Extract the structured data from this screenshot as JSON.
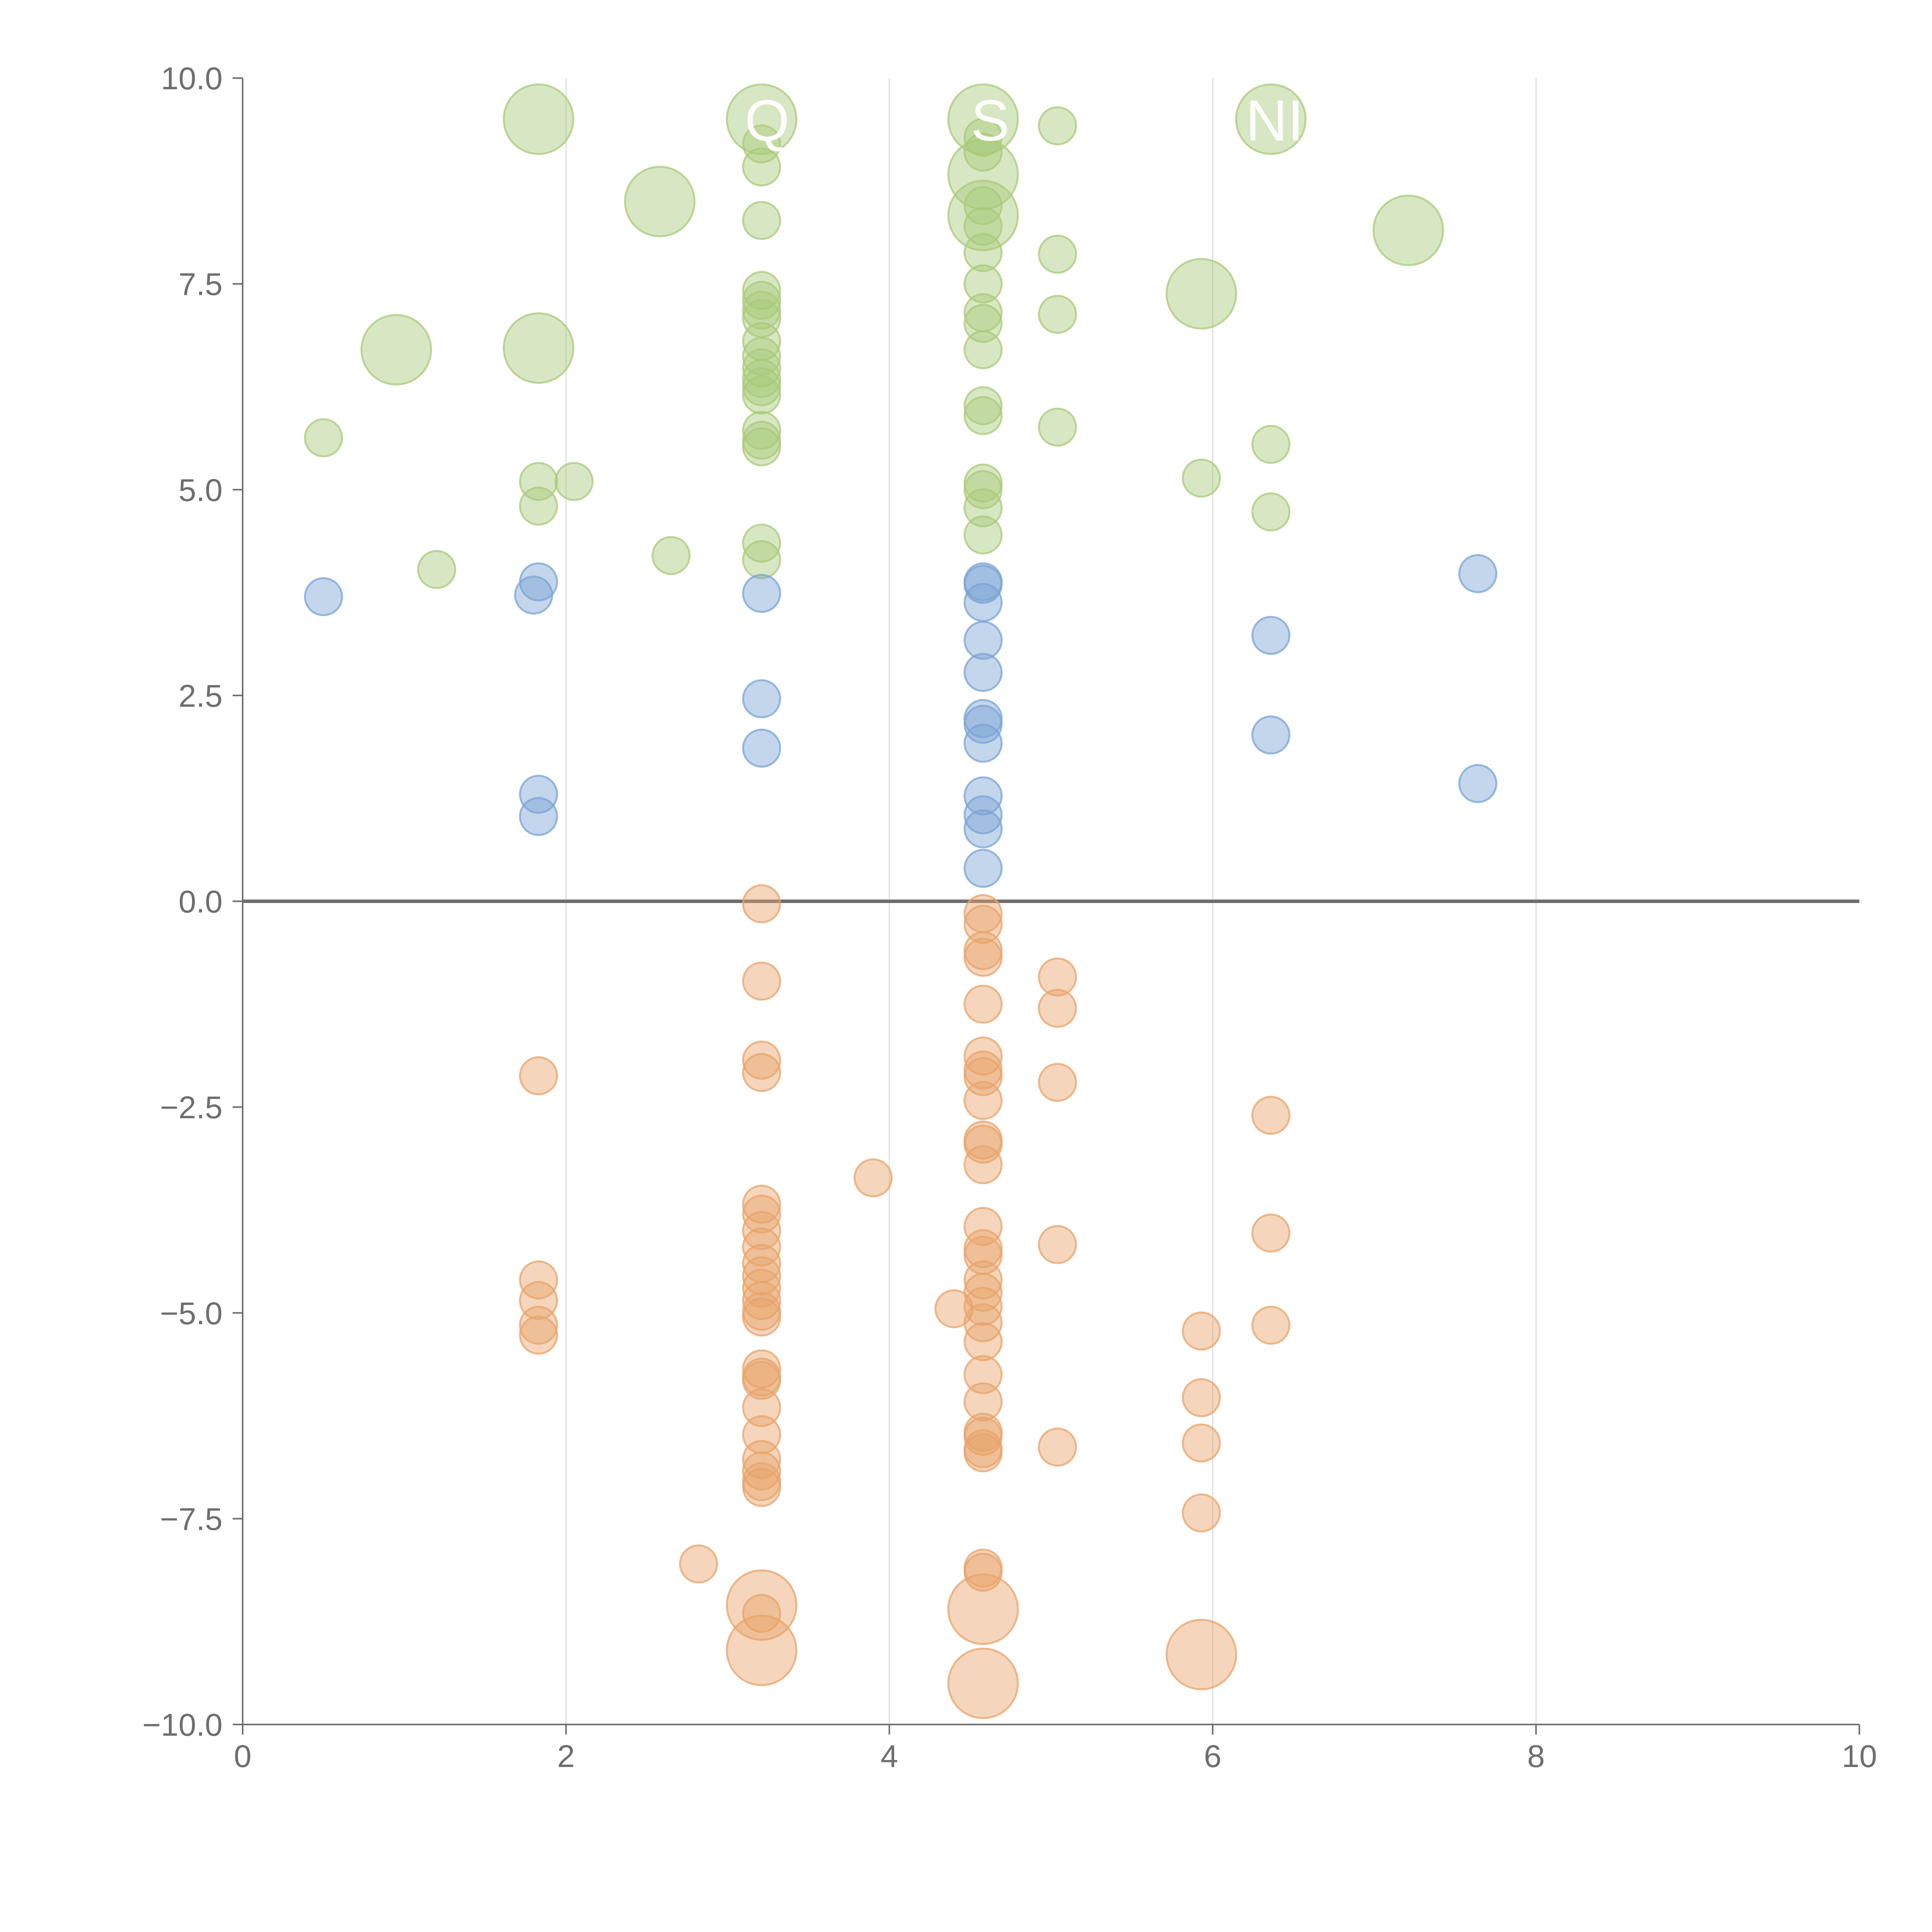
{
  "colors": {
    "positive_low": "#7aa3d4",
    "positive_high": "#a9c97a",
    "negative": "#e8a36b",
    "axis": "#6e6e6e",
    "grid": "#dddddd"
  },
  "chart_data": {
    "type": "scatter",
    "xlim": [
      0,
      10
    ],
    "ylim": [
      -10,
      10
    ],
    "x_ticks": [
      "0",
      "2",
      "4",
      "6",
      "8",
      "10"
    ],
    "y_ticks": [
      "10.0",
      "7.5",
      "5.0",
      "2.5",
      "0.0",
      "−2.5",
      "−5.0",
      "−7.5",
      "−10.0"
    ],
    "grid": "vertical",
    "reference_line_y": 0,
    "labels": [
      {
        "text": "Q",
        "x": 3.2,
        "y": 9.5
      },
      {
        "text": "S",
        "x": 4.6,
        "y": 9.5
      },
      {
        "text": "NI",
        "x": 6.3,
        "y": 9.5
      }
    ],
    "series": [
      {
        "color": "#a9c97a",
        "points": [
          {
            "x": 1.83,
            "y": 9.5,
            "s": 3
          },
          {
            "x": 3.21,
            "y": 9.5,
            "s": 3
          },
          {
            "x": 4.58,
            "y": 9.5,
            "s": 3
          },
          {
            "x": 6.36,
            "y": 9.5,
            "s": 3
          },
          {
            "x": 5.04,
            "y": 9.42,
            "s": 1
          },
          {
            "x": 4.58,
            "y": 9.28,
            "s": 1
          },
          {
            "x": 3.21,
            "y": 9.2,
            "s": 1
          },
          {
            "x": 4.58,
            "y": 9.1,
            "s": 1
          },
          {
            "x": 3.21,
            "y": 8.92,
            "s": 1
          },
          {
            "x": 4.58,
            "y": 8.83,
            "s": 3
          },
          {
            "x": 2.58,
            "y": 8.5,
            "s": 3
          },
          {
            "x": 4.58,
            "y": 8.45,
            "s": 1
          },
          {
            "x": 4.58,
            "y": 8.33,
            "s": 3
          },
          {
            "x": 3.21,
            "y": 8.27,
            "s": 1
          },
          {
            "x": 4.58,
            "y": 8.2,
            "s": 1
          },
          {
            "x": 7.21,
            "y": 8.15,
            "s": 3
          },
          {
            "x": 4.58,
            "y": 7.88,
            "s": 1
          },
          {
            "x": 5.04,
            "y": 7.86,
            "s": 1
          },
          {
            "x": 4.58,
            "y": 7.5,
            "s": 1
          },
          {
            "x": 3.21,
            "y": 7.42,
            "s": 1
          },
          {
            "x": 5.93,
            "y": 7.38,
            "s": 3
          },
          {
            "x": 3.21,
            "y": 7.3,
            "s": 1
          },
          {
            "x": 3.21,
            "y": 7.18,
            "s": 1
          },
          {
            "x": 4.58,
            "y": 7.15,
            "s": 1
          },
          {
            "x": 5.04,
            "y": 7.13,
            "s": 1
          },
          {
            "x": 3.21,
            "y": 7.08,
            "s": 1
          },
          {
            "x": 4.58,
            "y": 7.02,
            "s": 1
          },
          {
            "x": 3.21,
            "y": 6.8,
            "s": 1
          },
          {
            "x": 1.83,
            "y": 6.72,
            "s": 3
          },
          {
            "x": 0.95,
            "y": 6.7,
            "s": 3
          },
          {
            "x": 4.58,
            "y": 6.7,
            "s": 1
          },
          {
            "x": 3.21,
            "y": 6.62,
            "s": 1
          },
          {
            "x": 3.21,
            "y": 6.48,
            "s": 1
          },
          {
            "x": 3.21,
            "y": 6.35,
            "s": 1
          },
          {
            "x": 3.21,
            "y": 6.25,
            "s": 1
          },
          {
            "x": 3.21,
            "y": 6.15,
            "s": 1
          },
          {
            "x": 4.58,
            "y": 6.02,
            "s": 1
          },
          {
            "x": 4.58,
            "y": 5.9,
            "s": 1
          },
          {
            "x": 5.04,
            "y": 5.76,
            "s": 1
          },
          {
            "x": 3.21,
            "y": 5.72,
            "s": 1
          },
          {
            "x": 0.5,
            "y": 5.63,
            "s": 1
          },
          {
            "x": 3.21,
            "y": 5.6,
            "s": 1
          },
          {
            "x": 3.21,
            "y": 5.52,
            "s": 1
          },
          {
            "x": 6.36,
            "y": 5.55,
            "s": 1
          },
          {
            "x": 5.93,
            "y": 5.14,
            "s": 1
          },
          {
            "x": 1.83,
            "y": 5.1,
            "s": 1
          },
          {
            "x": 2.05,
            "y": 5.1,
            "s": 1
          },
          {
            "x": 4.58,
            "y": 5.08,
            "s": 1
          },
          {
            "x": 4.58,
            "y": 5.0,
            "s": 1
          },
          {
            "x": 1.83,
            "y": 4.8,
            "s": 1
          },
          {
            "x": 4.58,
            "y": 4.78,
            "s": 1
          },
          {
            "x": 6.36,
            "y": 4.73,
            "s": 1
          },
          {
            "x": 4.58,
            "y": 4.45,
            "s": 1
          },
          {
            "x": 3.21,
            "y": 4.35,
            "s": 1
          },
          {
            "x": 2.65,
            "y": 4.2,
            "s": 1
          },
          {
            "x": 3.21,
            "y": 4.15,
            "s": 1
          },
          {
            "x": 1.2,
            "y": 4.03,
            "s": 1
          }
        ]
      },
      {
        "color": "#7aa3d4",
        "points": [
          {
            "x": 7.64,
            "y": 3.98,
            "s": 1
          },
          {
            "x": 1.83,
            "y": 3.88,
            "s": 1
          },
          {
            "x": 4.58,
            "y": 3.88,
            "s": 1
          },
          {
            "x": 4.58,
            "y": 3.85,
            "s": 1
          },
          {
            "x": 3.21,
            "y": 3.74,
            "s": 1
          },
          {
            "x": 0.5,
            "y": 3.7,
            "s": 1
          },
          {
            "x": 1.8,
            "y": 3.72,
            "s": 1
          },
          {
            "x": 4.58,
            "y": 3.63,
            "s": 1
          },
          {
            "x": 6.36,
            "y": 3.23,
            "s": 1
          },
          {
            "x": 4.58,
            "y": 3.17,
            "s": 1
          },
          {
            "x": 4.58,
            "y": 2.78,
            "s": 1
          },
          {
            "x": 3.21,
            "y": 2.46,
            "s": 1
          },
          {
            "x": 4.58,
            "y": 2.22,
            "s": 1
          },
          {
            "x": 4.58,
            "y": 2.15,
            "s": 1
          },
          {
            "x": 6.36,
            "y": 2.02,
            "s": 1
          },
          {
            "x": 4.58,
            "y": 1.92,
            "s": 1
          },
          {
            "x": 3.21,
            "y": 1.86,
            "s": 1
          },
          {
            "x": 7.64,
            "y": 1.43,
            "s": 1
          },
          {
            "x": 1.83,
            "y": 1.3,
            "s": 1
          },
          {
            "x": 4.58,
            "y": 1.28,
            "s": 1
          },
          {
            "x": 4.58,
            "y": 1.05,
            "s": 1
          },
          {
            "x": 1.83,
            "y": 1.03,
            "s": 1
          },
          {
            "x": 4.58,
            "y": 0.88,
            "s": 1
          },
          {
            "x": 4.58,
            "y": 0.4,
            "s": 1
          }
        ]
      },
      {
        "color": "#e8a36b",
        "points": [
          {
            "x": 3.21,
            "y": -0.03,
            "s": 1
          },
          {
            "x": 4.58,
            "y": -0.15,
            "s": 1
          },
          {
            "x": 4.58,
            "y": -0.28,
            "s": 1
          },
          {
            "x": 4.58,
            "y": -0.6,
            "s": 1
          },
          {
            "x": 4.58,
            "y": -0.68,
            "s": 1
          },
          {
            "x": 5.04,
            "y": -0.92,
            "s": 1
          },
          {
            "x": 3.21,
            "y": -0.97,
            "s": 1
          },
          {
            "x": 4.58,
            "y": -1.25,
            "s": 1
          },
          {
            "x": 5.04,
            "y": -1.3,
            "s": 1
          },
          {
            "x": 4.58,
            "y": -1.88,
            "s": 1
          },
          {
            "x": 3.21,
            "y": -1.93,
            "s": 1
          },
          {
            "x": 4.58,
            "y": -2.05,
            "s": 1
          },
          {
            "x": 3.21,
            "y": -2.08,
            "s": 1
          },
          {
            "x": 1.83,
            "y": -2.12,
            "s": 1
          },
          {
            "x": 4.58,
            "y": -2.13,
            "s": 1
          },
          {
            "x": 5.04,
            "y": -2.2,
            "s": 1
          },
          {
            "x": 4.58,
            "y": -2.42,
            "s": 1
          },
          {
            "x": 6.36,
            "y": -2.6,
            "s": 1
          },
          {
            "x": 4.58,
            "y": -2.9,
            "s": 1
          },
          {
            "x": 4.58,
            "y": -2.95,
            "s": 1
          },
          {
            "x": 4.58,
            "y": -3.2,
            "s": 1
          },
          {
            "x": 3.9,
            "y": -3.36,
            "s": 1
          },
          {
            "x": 3.21,
            "y": -3.68,
            "s": 1
          },
          {
            "x": 3.21,
            "y": -3.8,
            "s": 1
          },
          {
            "x": 4.58,
            "y": -3.95,
            "s": 1
          },
          {
            "x": 3.21,
            "y": -4.0,
            "s": 1
          },
          {
            "x": 6.36,
            "y": -4.03,
            "s": 1
          },
          {
            "x": 5.04,
            "y": -4.17,
            "s": 1
          },
          {
            "x": 3.21,
            "y": -4.2,
            "s": 1
          },
          {
            "x": 4.58,
            "y": -4.22,
            "s": 1
          },
          {
            "x": 4.58,
            "y": -4.3,
            "s": 1
          },
          {
            "x": 3.21,
            "y": -4.4,
            "s": 1
          },
          {
            "x": 3.21,
            "y": -4.55,
            "s": 1
          },
          {
            "x": 1.83,
            "y": -4.6,
            "s": 1
          },
          {
            "x": 4.58,
            "y": -4.6,
            "s": 1
          },
          {
            "x": 3.21,
            "y": -4.7,
            "s": 1
          },
          {
            "x": 4.58,
            "y": -4.75,
            "s": 1
          },
          {
            "x": 1.83,
            "y": -4.85,
            "s": 1
          },
          {
            "x": 3.21,
            "y": -4.85,
            "s": 1
          },
          {
            "x": 4.58,
            "y": -4.92,
            "s": 1
          },
          {
            "x": 4.4,
            "y": -4.95,
            "s": 1
          },
          {
            "x": 3.21,
            "y": -4.98,
            "s": 1
          },
          {
            "x": 3.21,
            "y": -5.05,
            "s": 1
          },
          {
            "x": 4.58,
            "y": -5.12,
            "s": 1
          },
          {
            "x": 1.83,
            "y": -5.15,
            "s": 1
          },
          {
            "x": 6.36,
            "y": -5.15,
            "s": 1
          },
          {
            "x": 5.93,
            "y": -5.22,
            "s": 1
          },
          {
            "x": 1.83,
            "y": -5.27,
            "s": 1
          },
          {
            "x": 4.58,
            "y": -5.35,
            "s": 1
          },
          {
            "x": 3.21,
            "y": -5.68,
            "s": 1
          },
          {
            "x": 4.58,
            "y": -5.75,
            "s": 1
          },
          {
            "x": 3.21,
            "y": -5.78,
            "s": 1
          },
          {
            "x": 3.21,
            "y": -5.82,
            "s": 1
          },
          {
            "x": 5.93,
            "y": -6.03,
            "s": 1
          },
          {
            "x": 4.58,
            "y": -6.08,
            "s": 1
          },
          {
            "x": 3.21,
            "y": -6.15,
            "s": 1
          },
          {
            "x": 4.58,
            "y": -6.45,
            "s": 1
          },
          {
            "x": 3.21,
            "y": -6.48,
            "s": 1
          },
          {
            "x": 4.58,
            "y": -6.5,
            "s": 1
          },
          {
            "x": 5.93,
            "y": -6.58,
            "s": 1
          },
          {
            "x": 5.04,
            "y": -6.63,
            "s": 1
          },
          {
            "x": 4.58,
            "y": -6.65,
            "s": 1
          },
          {
            "x": 4.58,
            "y": -6.7,
            "s": 1
          },
          {
            "x": 3.21,
            "y": -6.78,
            "s": 1
          },
          {
            "x": 3.21,
            "y": -6.92,
            "s": 1
          },
          {
            "x": 3.21,
            "y": -7.05,
            "s": 1
          },
          {
            "x": 3.21,
            "y": -7.12,
            "s": 1
          },
          {
            "x": 5.93,
            "y": -7.43,
            "s": 1
          },
          {
            "x": 2.82,
            "y": -8.05,
            "s": 1
          },
          {
            "x": 4.58,
            "y": -8.1,
            "s": 1
          },
          {
            "x": 4.58,
            "y": -8.15,
            "s": 1
          },
          {
            "x": 3.21,
            "y": -8.55,
            "s": 3
          },
          {
            "x": 4.58,
            "y": -8.6,
            "s": 3
          },
          {
            "x": 3.21,
            "y": -8.65,
            "s": 1
          },
          {
            "x": 3.21,
            "y": -9.1,
            "s": 3
          },
          {
            "x": 5.93,
            "y": -9.15,
            "s": 3
          },
          {
            "x": 4.58,
            "y": -9.5,
            "s": 3
          }
        ]
      }
    ]
  }
}
